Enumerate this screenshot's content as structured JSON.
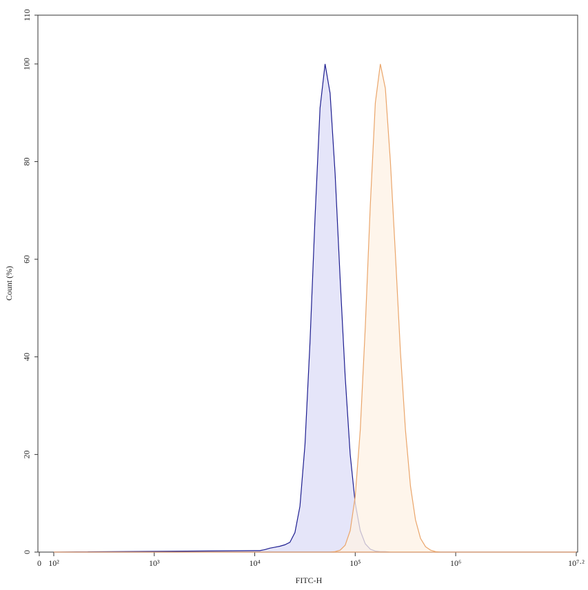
{
  "chart_data": {
    "type": "histogram-overlay",
    "xlabel": "FITC-H",
    "ylabel": "Count (%)",
    "xscale": "log",
    "xlim": [
      0,
      15848932
    ],
    "ylim": [
      0,
      110
    ],
    "xticks": [
      0,
      {
        "value": 100,
        "label": "10²"
      },
      {
        "value": 1000,
        "label": "10³"
      },
      {
        "value": 10000,
        "label": "10⁴"
      },
      {
        "value": 100000,
        "label": "10⁵"
      },
      {
        "value": 1000000,
        "label": "10⁶"
      },
      {
        "value": 15848932,
        "label": "10⁷·²"
      }
    ],
    "yticks": [
      0,
      20,
      40,
      60,
      80,
      100,
      110
    ],
    "x": [
      100,
      10000,
      11220,
      12589,
      14125,
      15849,
      17783,
      19953,
      22387,
      25119,
      28184,
      31623,
      35481,
      39811,
      44668,
      50119,
      56234,
      63096,
      70795,
      79433,
      89125,
      100000,
      112202,
      125893,
      141254,
      158489,
      177828,
      199526,
      223872,
      251189,
      281838,
      316228,
      354813,
      398107,
      446684,
      501187,
      562341,
      630957,
      707946,
      794328,
      15848932
    ],
    "series": [
      {
        "color": "#1c1c8f",
        "fill": "#dcdcf7",
        "values": [
          0,
          0.3,
          0.3,
          0.5,
          0.8,
          1,
          1.2,
          1.5,
          2,
          4,
          9.4,
          22,
          43,
          68.5,
          91,
          100,
          94,
          77.5,
          56,
          36,
          20,
          10,
          4.4,
          1.7,
          0.6,
          0.2,
          0.1,
          0.1,
          0,
          0,
          0,
          0,
          0,
          0,
          0,
          0,
          0,
          0,
          0,
          0,
          0
        ]
      },
      {
        "color": "#eaa56a",
        "fill": "#fdf1e4",
        "values": [
          0,
          0,
          0,
          0,
          0,
          0,
          0,
          0,
          0,
          0,
          0,
          0,
          0,
          0,
          0,
          0,
          0,
          0.1,
          0.4,
          1.4,
          4.4,
          11.4,
          25,
          46,
          71,
          92,
          100,
          95,
          80,
          61,
          41,
          25,
          13.5,
          6.6,
          2.8,
          1.1,
          0.4,
          0.1,
          0,
          0,
          0
        ]
      }
    ]
  }
}
